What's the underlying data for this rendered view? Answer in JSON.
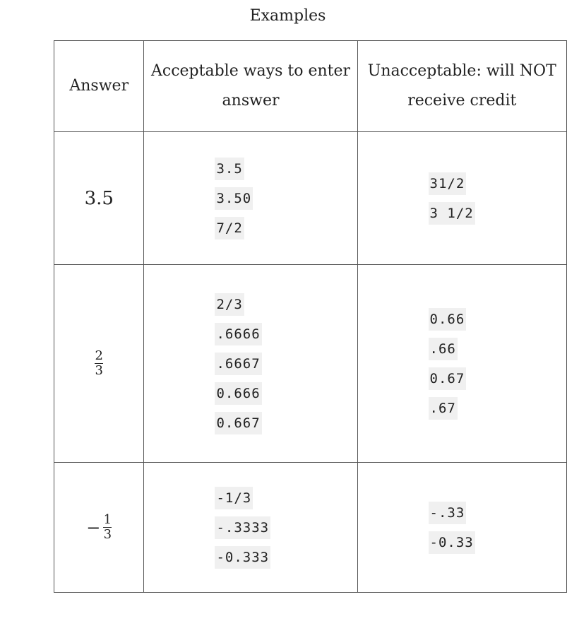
{
  "caption": "Examples",
  "table": {
    "headers": [
      "Answer",
      "Acceptable ways to enter answer",
      "Unacceptable: will NOT receive credit"
    ],
    "rows": [
      {
        "answer": "3.5",
        "acceptable": [
          "3.5",
          "3.50",
          "7/2"
        ],
        "unacceptable": [
          "31/2",
          "3 1/2"
        ]
      },
      {
        "answer": {
          "numerator": "2",
          "denominator": "3"
        },
        "acceptable": [
          "2/3",
          ".6666",
          ".6667",
          "0.666",
          "0.667"
        ],
        "unacceptable": [
          "0.66",
          ".66",
          "0.67",
          ".67"
        ]
      },
      {
        "answer": {
          "sign": "−",
          "numerator": "1",
          "denominator": "3"
        },
        "acceptable": [
          "-1/3",
          "-.3333",
          "-0.333"
        ],
        "unacceptable": [
          "-.33",
          "-0.33"
        ]
      }
    ]
  }
}
